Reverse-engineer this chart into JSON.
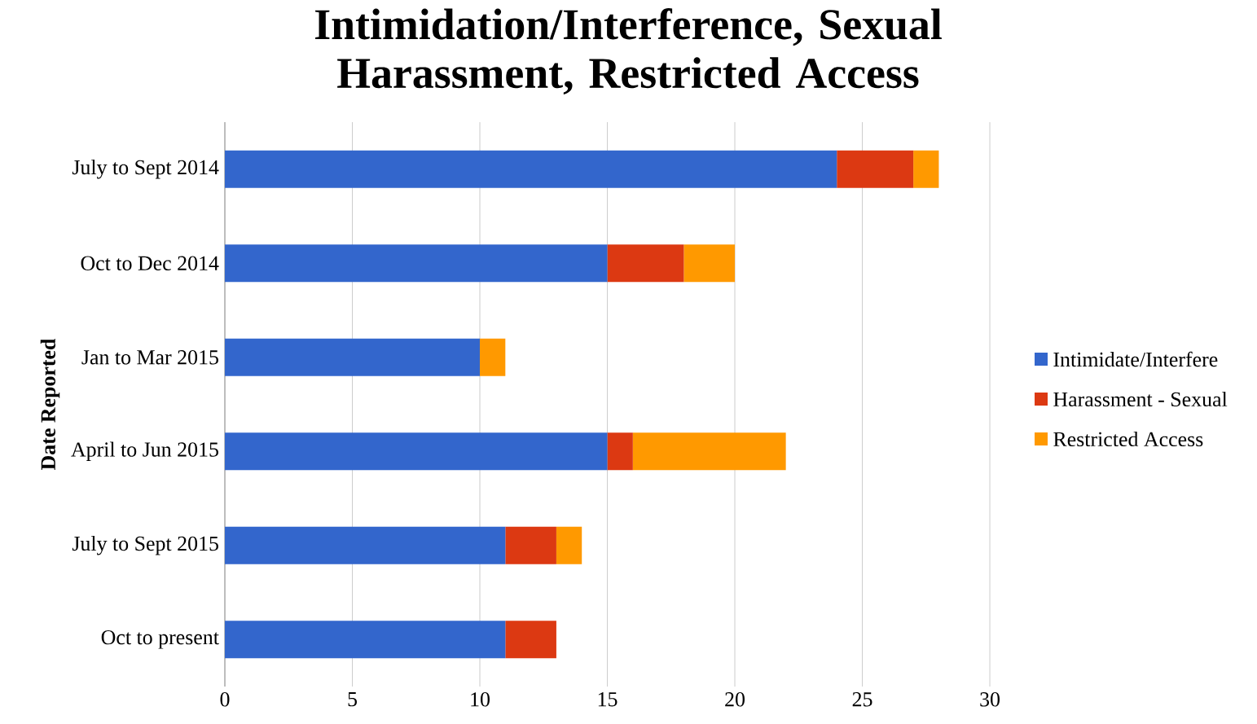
{
  "chart_data": {
    "type": "bar",
    "orientation": "horizontal",
    "stacked": true,
    "title": "Intimidation/Interference, Sexual Harassment, Restricted Access",
    "ylabel": "Date Reported",
    "categories": [
      "July to Sept 2014",
      "Oct to Dec 2014",
      "Jan to Mar 2015",
      "April to Jun 2015",
      "July to Sept 2015",
      "Oct to present"
    ],
    "series": [
      {
        "name": "Intimidate/Interfere",
        "color": "#3366cc",
        "values": [
          24,
          15,
          10,
          15,
          11,
          11
        ]
      },
      {
        "name": "Harassment - Sexual",
        "color": "#dc3912",
        "values": [
          3,
          3,
          0,
          1,
          2,
          2
        ]
      },
      {
        "name": "Restricted Access",
        "color": "#ff9900",
        "values": [
          1,
          2,
          1,
          6,
          1,
          0
        ]
      }
    ],
    "xlim": [
      0,
      30
    ],
    "xticks": [
      0,
      5,
      10,
      15,
      20,
      25,
      30
    ],
    "grid": "x",
    "legend": "right"
  }
}
